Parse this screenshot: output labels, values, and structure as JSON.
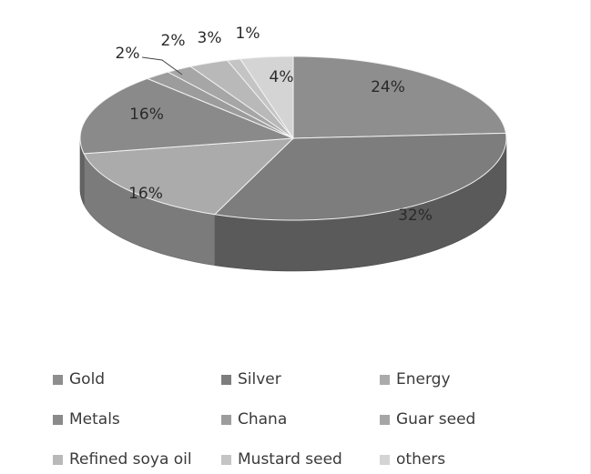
{
  "chart_data": {
    "type": "pie",
    "style": "3d",
    "labels": [
      "Gold",
      "Silver",
      "Energy",
      "Metals",
      "Chana",
      "Guar seed",
      "Refined soya oil",
      "Mustard seed",
      "others"
    ],
    "values": [
      24,
      32,
      16,
      16,
      2,
      2,
      3,
      1,
      4
    ],
    "data_labels": [
      "24%",
      "32%",
      "16%",
      "16%",
      "2%",
      "2%",
      "3%",
      "1%",
      "4%"
    ],
    "colors": [
      "#8e8e8e",
      "#7d7d7d",
      "#ababab",
      "#8a8a8a",
      "#9c9c9c",
      "#a6a6a6",
      "#b9b9b9",
      "#c4c4c4",
      "#d4d4d4"
    ],
    "legend_position": "bottom",
    "title": ""
  }
}
